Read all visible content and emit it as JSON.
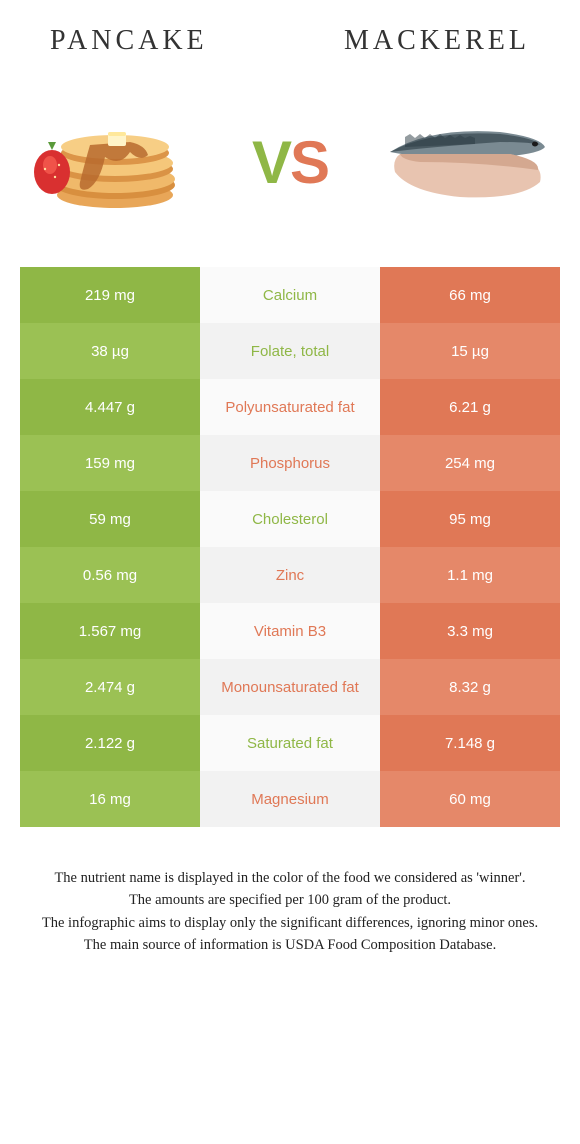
{
  "header": {
    "left_title": "PANCAKE",
    "right_title": "MACKEREL"
  },
  "vs": {
    "v": "V",
    "s": "S"
  },
  "colors": {
    "green": "#8fb746",
    "green_alt": "#9bc154",
    "orange": "#e07856",
    "orange_alt": "#e58869",
    "mid_bg_a": "#fafafa",
    "mid_bg_b": "#f2f2f2",
    "text_green": "#8fb746",
    "text_orange": "#e07856"
  },
  "rows": [
    {
      "left": "219 mg",
      "label": "Calcium",
      "right": "66 mg",
      "winner": "left"
    },
    {
      "left": "38 µg",
      "label": "Folate, total",
      "right": "15 µg",
      "winner": "left"
    },
    {
      "left": "4.447 g",
      "label": "Polyunsaturated fat",
      "right": "6.21 g",
      "winner": "right"
    },
    {
      "left": "159 mg",
      "label": "Phosphorus",
      "right": "254 mg",
      "winner": "right"
    },
    {
      "left": "59 mg",
      "label": "Cholesterol",
      "right": "95 mg",
      "winner": "left"
    },
    {
      "left": "0.56 mg",
      "label": "Zinc",
      "right": "1.1 mg",
      "winner": "right"
    },
    {
      "left": "1.567 mg",
      "label": "Vitamin B3",
      "right": "3.3 mg",
      "winner": "right"
    },
    {
      "left": "2.474 g",
      "label": "Monounsaturated fat",
      "right": "8.32 g",
      "winner": "right"
    },
    {
      "left": "2.122 g",
      "label": "Saturated fat",
      "right": "7.148 g",
      "winner": "left"
    },
    {
      "left": "16 mg",
      "label": "Magnesium",
      "right": "60 mg",
      "winner": "right"
    }
  ],
  "footer": {
    "line1": "The nutrient name is displayed in the color of the food we considered as 'winner'.",
    "line2": "The amounts are specified per 100 gram of the product.",
    "line3": "The infographic aims to display only the significant differences, ignoring minor ones.",
    "line4": "The main source of information is USDA Food Composition Database."
  }
}
